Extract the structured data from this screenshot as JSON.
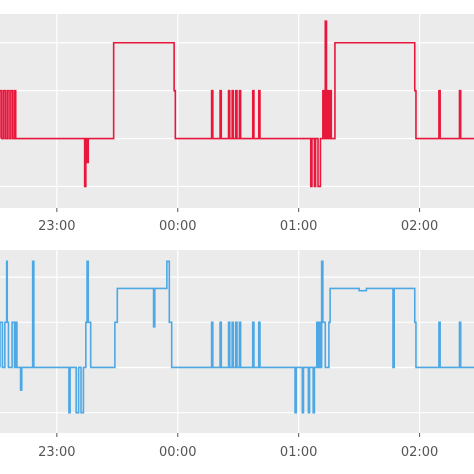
{
  "chart_data": [
    {
      "type": "line",
      "title": "",
      "xlabel": "",
      "ylabel": "",
      "grid": true,
      "legend": "none",
      "series_color": "#e8183d",
      "background": "#ebebeb",
      "x_ticks": [
        {
          "x": 23.0,
          "label": "23:00"
        },
        {
          "x": 24.0,
          "label": "00:00"
        },
        {
          "x": 25.0,
          "label": "01:00"
        },
        {
          "x": 26.0,
          "label": "02:00"
        }
      ],
      "xlim": [
        22.53,
        26.45
      ],
      "y_levels": [
        4,
        3,
        2,
        1
      ],
      "ylim": [
        0.55,
        4.6
      ],
      "points": [
        [
          22.53,
          2
        ],
        [
          22.53,
          3
        ],
        [
          22.545,
          3
        ],
        [
          22.545,
          2
        ],
        [
          22.56,
          2
        ],
        [
          22.56,
          3
        ],
        [
          22.575,
          3
        ],
        [
          22.575,
          2
        ],
        [
          22.59,
          2
        ],
        [
          22.59,
          3
        ],
        [
          22.605,
          3
        ],
        [
          22.605,
          2
        ],
        [
          22.62,
          2
        ],
        [
          22.62,
          3
        ],
        [
          22.635,
          3
        ],
        [
          22.635,
          2
        ],
        [
          22.65,
          2
        ],
        [
          22.65,
          3
        ],
        [
          22.66,
          3
        ],
        [
          22.66,
          2
        ],
        [
          22.665,
          2
        ],
        [
          23.23,
          2
        ],
        [
          23.23,
          1
        ],
        [
          23.24,
          1
        ],
        [
          23.24,
          2
        ],
        [
          23.25,
          2
        ],
        [
          23.25,
          1.5
        ],
        [
          23.26,
          1.5
        ],
        [
          23.26,
          2
        ],
        [
          23.47,
          2
        ],
        [
          23.47,
          4
        ],
        [
          23.97,
          4
        ],
        [
          23.97,
          3
        ],
        [
          23.98,
          3
        ],
        [
          23.98,
          2
        ],
        [
          24.28,
          2
        ],
        [
          24.28,
          3
        ],
        [
          24.29,
          3
        ],
        [
          24.29,
          2
        ],
        [
          24.35,
          2
        ],
        [
          24.35,
          3
        ],
        [
          24.36,
          3
        ],
        [
          24.36,
          2
        ],
        [
          24.42,
          2
        ],
        [
          24.42,
          3
        ],
        [
          24.43,
          3
        ],
        [
          24.43,
          2
        ],
        [
          24.45,
          2
        ],
        [
          24.45,
          3
        ],
        [
          24.46,
          3
        ],
        [
          24.46,
          2
        ],
        [
          24.48,
          2
        ],
        [
          24.48,
          3
        ],
        [
          24.49,
          3
        ],
        [
          24.49,
          2
        ],
        [
          24.51,
          2
        ],
        [
          24.51,
          3
        ],
        [
          24.52,
          3
        ],
        [
          24.52,
          2
        ],
        [
          24.62,
          2
        ],
        [
          24.62,
          3
        ],
        [
          24.63,
          3
        ],
        [
          24.63,
          2
        ],
        [
          24.67,
          2
        ],
        [
          24.67,
          3
        ],
        [
          24.68,
          3
        ],
        [
          24.68,
          2
        ],
        [
          25.1,
          2
        ],
        [
          25.1,
          1
        ],
        [
          25.11,
          1
        ],
        [
          25.11,
          2
        ],
        [
          25.13,
          2
        ],
        [
          25.13,
          1
        ],
        [
          25.14,
          1
        ],
        [
          25.14,
          2
        ],
        [
          25.16,
          2
        ],
        [
          25.16,
          1
        ],
        [
          25.18,
          1
        ],
        [
          25.18,
          2
        ],
        [
          25.2,
          2
        ],
        [
          25.2,
          3
        ],
        [
          25.21,
          3
        ],
        [
          25.21,
          2
        ],
        [
          25.22,
          2
        ],
        [
          25.22,
          4.45
        ],
        [
          25.23,
          4.45
        ],
        [
          25.23,
          2
        ],
        [
          25.24,
          2
        ],
        [
          25.24,
          3
        ],
        [
          25.25,
          3
        ],
        [
          25.25,
          2
        ],
        [
          25.26,
          2
        ],
        [
          25.26,
          3
        ],
        [
          25.27,
          3
        ],
        [
          25.27,
          2
        ],
        [
          25.3,
          2
        ],
        [
          25.3,
          4
        ],
        [
          25.96,
          4
        ],
        [
          25.96,
          3
        ],
        [
          25.97,
          3
        ],
        [
          25.97,
          2
        ],
        [
          26.16,
          2
        ],
        [
          26.16,
          3
        ],
        [
          26.17,
          3
        ],
        [
          26.17,
          2
        ],
        [
          26.33,
          2
        ],
        [
          26.33,
          3
        ],
        [
          26.34,
          3
        ],
        [
          26.34,
          2
        ],
        [
          26.45,
          2
        ]
      ]
    },
    {
      "type": "line",
      "title": "",
      "xlabel": "",
      "ylabel": "",
      "grid": true,
      "legend": "none",
      "series_color": "#4ea8e4",
      "background": "#ebebeb",
      "x_ticks": [
        {
          "x": 23.0,
          "label": "23:00"
        },
        {
          "x": 24.0,
          "label": "00:00"
        },
        {
          "x": 25.0,
          "label": "01:00"
        },
        {
          "x": 26.0,
          "label": "02:00"
        }
      ],
      "xlim": [
        22.53,
        26.45
      ],
      "y_levels": [
        4,
        3,
        2,
        1
      ],
      "ylim": [
        0.55,
        4.6
      ],
      "points": [
        [
          22.53,
          2
        ],
        [
          22.53,
          3
        ],
        [
          22.55,
          3
        ],
        [
          22.55,
          2
        ],
        [
          22.57,
          2
        ],
        [
          22.57,
          3
        ],
        [
          22.585,
          3
        ],
        [
          22.585,
          4.35
        ],
        [
          22.59,
          4.35
        ],
        [
          22.59,
          3
        ],
        [
          22.6,
          3
        ],
        [
          22.6,
          2
        ],
        [
          22.63,
          2
        ],
        [
          22.63,
          3
        ],
        [
          22.65,
          3
        ],
        [
          22.65,
          2
        ],
        [
          22.66,
          2
        ],
        [
          22.66,
          3
        ],
        [
          22.67,
          3
        ],
        [
          22.67,
          2
        ],
        [
          22.7,
          2
        ],
        [
          22.7,
          1.5
        ],
        [
          22.71,
          1.5
        ],
        [
          22.71,
          2
        ],
        [
          22.8,
          2
        ],
        [
          22.8,
          4.35
        ],
        [
          22.81,
          4.35
        ],
        [
          22.81,
          2
        ],
        [
          23.1,
          2
        ],
        [
          23.1,
          1
        ],
        [
          23.11,
          1
        ],
        [
          23.11,
          2
        ],
        [
          23.16,
          2
        ],
        [
          23.16,
          1
        ],
        [
          23.18,
          1
        ],
        [
          23.18,
          2
        ],
        [
          23.2,
          2
        ],
        [
          23.2,
          1
        ],
        [
          23.22,
          1
        ],
        [
          23.22,
          2
        ],
        [
          23.24,
          2
        ],
        [
          23.24,
          3
        ],
        [
          23.25,
          3
        ],
        [
          23.25,
          4.35
        ],
        [
          23.26,
          4.35
        ],
        [
          23.26,
          3
        ],
        [
          23.28,
          3
        ],
        [
          23.28,
          2
        ],
        [
          23.48,
          2
        ],
        [
          23.48,
          3
        ],
        [
          23.5,
          3
        ],
        [
          23.5,
          3.75
        ],
        [
          23.8,
          3.75
        ],
        [
          23.8,
          2.9
        ],
        [
          23.81,
          2.9
        ],
        [
          23.81,
          3.75
        ],
        [
          23.91,
          3.75
        ],
        [
          23.91,
          4.35
        ],
        [
          23.93,
          4.35
        ],
        [
          23.93,
          3
        ],
        [
          23.95,
          3
        ],
        [
          23.95,
          2
        ],
        [
          24.28,
          2
        ],
        [
          24.28,
          3
        ],
        [
          24.29,
          3
        ],
        [
          24.29,
          2
        ],
        [
          24.35,
          2
        ],
        [
          24.35,
          3
        ],
        [
          24.36,
          3
        ],
        [
          24.36,
          2
        ],
        [
          24.42,
          2
        ],
        [
          24.42,
          3
        ],
        [
          24.43,
          3
        ],
        [
          24.43,
          2
        ],
        [
          24.45,
          2
        ],
        [
          24.45,
          3
        ],
        [
          24.46,
          3
        ],
        [
          24.46,
          2
        ],
        [
          24.48,
          2
        ],
        [
          24.48,
          3
        ],
        [
          24.49,
          3
        ],
        [
          24.49,
          2
        ],
        [
          24.51,
          2
        ],
        [
          24.51,
          3
        ],
        [
          24.52,
          3
        ],
        [
          24.52,
          2
        ],
        [
          24.62,
          2
        ],
        [
          24.62,
          3
        ],
        [
          24.63,
          3
        ],
        [
          24.63,
          2
        ],
        [
          24.67,
          2
        ],
        [
          24.67,
          3
        ],
        [
          24.68,
          3
        ],
        [
          24.68,
          2
        ],
        [
          24.97,
          2
        ],
        [
          24.97,
          1
        ],
        [
          24.98,
          1
        ],
        [
          24.98,
          2
        ],
        [
          25.03,
          2
        ],
        [
          25.03,
          1
        ],
        [
          25.04,
          1
        ],
        [
          25.04,
          2
        ],
        [
          25.08,
          2
        ],
        [
          25.08,
          1
        ],
        [
          25.09,
          1
        ],
        [
          25.09,
          2
        ],
        [
          25.12,
          2
        ],
        [
          25.12,
          1
        ],
        [
          25.13,
          1
        ],
        [
          25.13,
          2
        ],
        [
          25.15,
          2
        ],
        [
          25.15,
          3
        ],
        [
          25.16,
          3
        ],
        [
          25.16,
          2
        ],
        [
          25.17,
          2
        ],
        [
          25.17,
          3
        ],
        [
          25.18,
          3
        ],
        [
          25.18,
          2
        ],
        [
          25.19,
          2
        ],
        [
          25.19,
          4.35
        ],
        [
          25.2,
          4.35
        ],
        [
          25.2,
          3
        ],
        [
          25.22,
          3
        ],
        [
          25.22,
          2
        ],
        [
          25.25,
          2
        ],
        [
          25.25,
          3
        ],
        [
          25.26,
          3
        ],
        [
          25.26,
          3.75
        ],
        [
          25.5,
          3.75
        ],
        [
          25.5,
          3.7
        ],
        [
          25.56,
          3.7
        ],
        [
          25.56,
          3.75
        ],
        [
          25.78,
          3.75
        ],
        [
          25.78,
          2
        ],
        [
          25.79,
          2
        ],
        [
          25.79,
          3.75
        ],
        [
          25.96,
          3.75
        ],
        [
          25.96,
          3
        ],
        [
          25.97,
          3
        ],
        [
          25.97,
          2
        ],
        [
          26.16,
          2
        ],
        [
          26.16,
          3
        ],
        [
          26.17,
          3
        ],
        [
          26.17,
          2
        ],
        [
          26.33,
          2
        ],
        [
          26.33,
          3
        ],
        [
          26.34,
          3
        ],
        [
          26.34,
          2
        ],
        [
          26.45,
          2
        ]
      ]
    }
  ]
}
